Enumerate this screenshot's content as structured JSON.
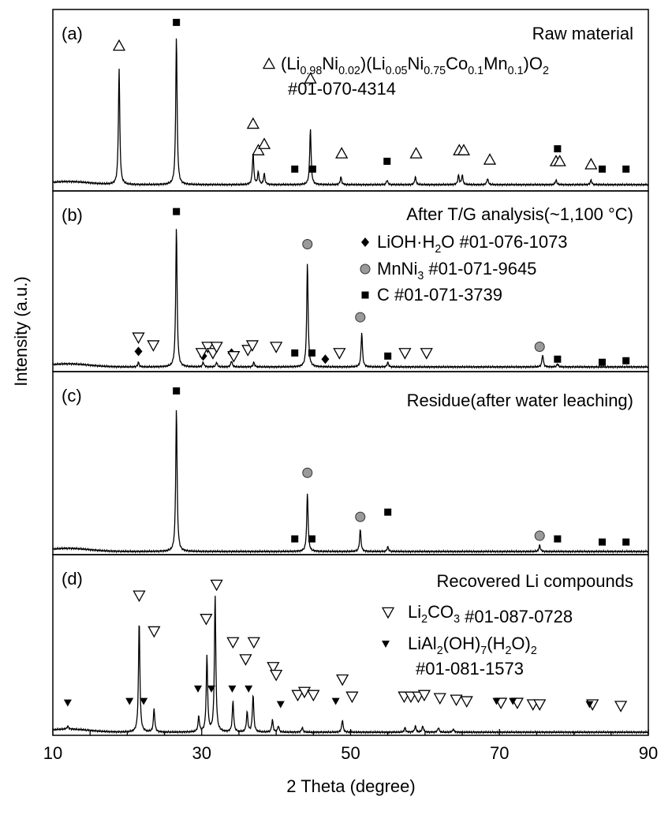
{
  "chart_data": {
    "type": "line",
    "xlabel": "2 Theta (degree)",
    "ylabel": "Intensity (a.u.)",
    "xlim": [
      10,
      90
    ],
    "xticks": [
      10,
      30,
      50,
      70,
      90
    ],
    "grid": false,
    "legend_position": "top-right",
    "panels": [
      {
        "id": "a",
        "label": "(a)",
        "title": "Raw material",
        "legend": [
          {
            "marker": "open-triangle-up",
            "name": "(Li0.98Ni0.02)(Li0.05Ni0.75Co0.1Mn0.1)O2",
            "card": "#01-070-4314"
          }
        ],
        "baseline": 0.04,
        "peaks": [
          [
            18.9,
            0.74
          ],
          [
            26.6,
            0.95
          ],
          [
            36.9,
            0.2
          ],
          [
            37.6,
            0.08
          ],
          [
            38.4,
            0.07
          ],
          [
            44.6,
            0.36
          ],
          [
            48.7,
            0.05
          ],
          [
            54.9,
            0.03
          ],
          [
            58.7,
            0.05
          ],
          [
            64.5,
            0.06
          ],
          [
            65.0,
            0.06
          ],
          [
            68.4,
            0.04
          ],
          [
            77.6,
            0.03
          ],
          [
            82.3,
            0.03
          ]
        ],
        "markers": [
          {
            "type": "open-triangle-up",
            "x": [
              18.9,
              36.9,
              37.6,
              38.4,
              44.6,
              48.8,
              58.8,
              64.6,
              65.2,
              68.7,
              77.6,
              78.1,
              82.3
            ],
            "y": [
              0.93,
              0.43,
              0.26,
              0.3,
              0.72,
              0.24,
              0.24,
              0.26,
              0.26,
              0.2,
              0.19,
              0.19,
              0.17
            ]
          },
          {
            "type": "square",
            "x": [
              26.6,
              42.5,
              44.9,
              54.9,
              77.8,
              83.8,
              87.0
            ],
            "y": [
              1.08,
              0.14,
              0.14,
              0.19,
              0.27,
              0.14,
              0.14
            ]
          }
        ]
      },
      {
        "id": "b",
        "label": "(b)",
        "title": "After T/G analysis(~1,100 °C)",
        "legend": [
          {
            "marker": "diamond",
            "name": "LiOH·H2O",
            "card": "#01-076-1073"
          },
          {
            "marker": "circle",
            "name": "MnNi3",
            "card": "#01-071-9645"
          },
          {
            "marker": "square",
            "name": "C",
            "card": "#01-071-3739"
          }
        ],
        "baseline": 0.03,
        "peaks": [
          [
            21.5,
            0.03
          ],
          [
            26.6,
            0.9
          ],
          [
            30.2,
            0.03
          ],
          [
            32.0,
            0.03
          ],
          [
            34.0,
            0.04
          ],
          [
            37.0,
            0.03
          ],
          [
            44.2,
            0.67
          ],
          [
            51.5,
            0.22
          ],
          [
            55.0,
            0.03
          ],
          [
            75.8,
            0.08
          ],
          [
            77.8,
            0.02
          ]
        ],
        "markers": [
          {
            "type": "square",
            "x": [
              26.6,
              42.5,
              44.8,
              55.0,
              77.8,
              83.8,
              87.0
            ],
            "y": [
              1.03,
              0.12,
              0.12,
              0.1,
              0.08,
              0.06,
              0.07
            ]
          },
          {
            "type": "circle",
            "x": [
              44.2,
              51.3,
              75.4
            ],
            "y": [
              0.82,
              0.35,
              0.16
            ]
          },
          {
            "type": "diamond",
            "x": [
              21.5,
              30.2,
              34.0,
              46.6
            ],
            "y": [
              0.13,
              0.1,
              0.12,
              0.08
            ]
          },
          {
            "type": "open-triangle-down",
            "x": [
              21.5,
              23.5,
              30.0,
              30.8,
              31.5,
              32.0,
              34.3,
              36.2,
              36.8,
              40.0,
              48.5,
              57.3,
              60.2
            ],
            "y": [
              0.22,
              0.17,
              0.12,
              0.16,
              0.12,
              0.16,
              0.1,
              0.14,
              0.17,
              0.16,
              0.12,
              0.12,
              0.12
            ]
          }
        ]
      },
      {
        "id": "c",
        "label": "(c)",
        "title": "Residue(after water leaching)",
        "legend": [],
        "baseline": 0.02,
        "peaks": [
          [
            26.6,
            0.91
          ],
          [
            44.2,
            0.37
          ],
          [
            51.3,
            0.14
          ],
          [
            55.0,
            0.03
          ],
          [
            75.4,
            0.04
          ]
        ],
        "markers": [
          {
            "type": "square",
            "x": [
              26.6,
              42.5,
              44.8,
              55.0,
              77.8,
              83.8,
              87.0
            ],
            "y": [
              1.04,
              0.1,
              0.1,
              0.27,
              0.1,
              0.08,
              0.08
            ]
          },
          {
            "type": "circle",
            "x": [
              44.2,
              51.3,
              75.4
            ],
            "y": [
              0.52,
              0.24,
              0.12
            ]
          }
        ]
      },
      {
        "id": "d",
        "label": "(d)",
        "title": "Recovered Li compounds",
        "legend": [
          {
            "marker": "open-triangle-down",
            "name": "Li2CO3",
            "card": "#01-087-0728"
          },
          {
            "marker": "filled-triangle-down",
            "name": "LiAl2(OH)7(H2O)2",
            "card": "#01-081-1573"
          }
        ],
        "baseline": 0.02,
        "peaks": [
          [
            12.0,
            0.02
          ],
          [
            21.6,
            0.72
          ],
          [
            23.6,
            0.15
          ],
          [
            29.6,
            0.1
          ],
          [
            30.7,
            0.49
          ],
          [
            31.8,
            0.88
          ],
          [
            34.2,
            0.2
          ],
          [
            36.1,
            0.13
          ],
          [
            36.9,
            0.24
          ],
          [
            39.5,
            0.08
          ],
          [
            40.3,
            0.04
          ],
          [
            43.5,
            0.03
          ],
          [
            48.9,
            0.08
          ],
          [
            57.3,
            0.03
          ],
          [
            58.7,
            0.04
          ],
          [
            59.7,
            0.04
          ],
          [
            61.8,
            0.03
          ],
          [
            63.8,
            0.02
          ]
        ],
        "markers": [
          {
            "type": "open-triangle-down",
            "x": [
              21.6,
              23.6,
              30.6,
              32.0,
              34.2,
              35.9,
              37.0,
              39.6,
              40.0,
              42.9,
              43.8,
              45.0,
              48.9,
              50.2,
              57.2,
              58.1,
              59.1,
              59.9,
              62.0,
              64.2,
              65.6,
              70.2,
              72.4,
              74.5,
              75.4,
              82.5,
              86.3
            ],
            "y": [
              0.9,
              0.67,
              0.75,
              0.97,
              0.6,
              0.49,
              0.6,
              0.44,
              0.39,
              0.26,
              0.28,
              0.26,
              0.36,
              0.25,
              0.25,
              0.25,
              0.25,
              0.26,
              0.24,
              0.23,
              0.22,
              0.21,
              0.21,
              0.2,
              0.2,
              0.2,
              0.19
            ]
          },
          {
            "type": "filled-triangle-down",
            "x": [
              12.0,
              20.3,
              22.2,
              29.5,
              31.3,
              34.1,
              36.3,
              40.6,
              48.0,
              69.6,
              71.8,
              82.1
            ],
            "y": [
              0.21,
              0.22,
              0.22,
              0.3,
              0.3,
              0.3,
              0.3,
              0.2,
              0.22,
              0.22,
              0.22,
              0.2
            ]
          }
        ]
      }
    ]
  }
}
